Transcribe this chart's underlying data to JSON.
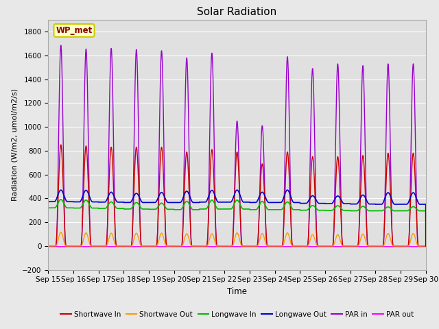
{
  "title": "Solar Radiation",
  "xlabel": "Time",
  "ylabel": "Radiation (W/m2, umol/m2/s)",
  "ylim": [
    -200,
    1900
  ],
  "yticks": [
    -200,
    0,
    200,
    400,
    600,
    800,
    1000,
    1200,
    1400,
    1600,
    1800
  ],
  "xtick_labels": [
    "Sep 15",
    "Sep 16",
    "Sep 17",
    "Sep 18",
    "Sep 19",
    "Sep 20",
    "Sep 21",
    "Sep 22",
    "Sep 23",
    "Sep 24",
    "Sep 25",
    "Sep 26",
    "Sep 27",
    "Sep 28",
    "Sep 29",
    "Sep 30"
  ],
  "fig_bg_color": "#e8e8e8",
  "plot_bg_color": "#e0e0e0",
  "legend_label": "WP_met",
  "series": {
    "shortwave_in": {
      "color": "#cc0000",
      "label": "Shortwave In"
    },
    "shortwave_out": {
      "color": "#ff9900",
      "label": "Shortwave Out"
    },
    "longwave_in": {
      "color": "#00bb00",
      "label": "Longwave In"
    },
    "longwave_out": {
      "color": "#0000cc",
      "label": "Longwave Out"
    },
    "par_in": {
      "color": "#9900cc",
      "label": "PAR in"
    },
    "par_out": {
      "color": "#ff00ff",
      "label": "PAR out"
    }
  },
  "sw_in_peaks": [
    850,
    840,
    830,
    830,
    830,
    790,
    810,
    790,
    690,
    790,
    750,
    750,
    760,
    780,
    780
  ],
  "sw_out_peaks": [
    115,
    110,
    108,
    108,
    108,
    103,
    103,
    110,
    105,
    110,
    95,
    95,
    100,
    105,
    105
  ],
  "lw_in_peaks": [
    390,
    385,
    370,
    365,
    360,
    375,
    385,
    385,
    375,
    370,
    340,
    338,
    333,
    328,
    330
  ],
  "lw_in_night": [
    320,
    318,
    315,
    310,
    308,
    305,
    310,
    310,
    305,
    305,
    300,
    298,
    295,
    295,
    295
  ],
  "lw_out_peaks": [
    470,
    468,
    452,
    442,
    450,
    460,
    468,
    470,
    452,
    470,
    422,
    420,
    428,
    448,
    448
  ],
  "lw_out_night": [
    372,
    370,
    368,
    365,
    365,
    365,
    368,
    368,
    365,
    365,
    358,
    355,
    352,
    350,
    350
  ],
  "par_in_peaks": [
    1685,
    1655,
    1660,
    1650,
    1640,
    1580,
    1620,
    1050,
    1010,
    1590,
    1490,
    1530,
    1515,
    1530,
    1530
  ],
  "par_out_peaks": [
    -5,
    -5,
    -5,
    -5,
    -5,
    -5,
    -5,
    -5,
    -5,
    -5,
    -5,
    -5,
    -5,
    -5,
    -5
  ],
  "n_days": 15,
  "pts_per_day": 480
}
